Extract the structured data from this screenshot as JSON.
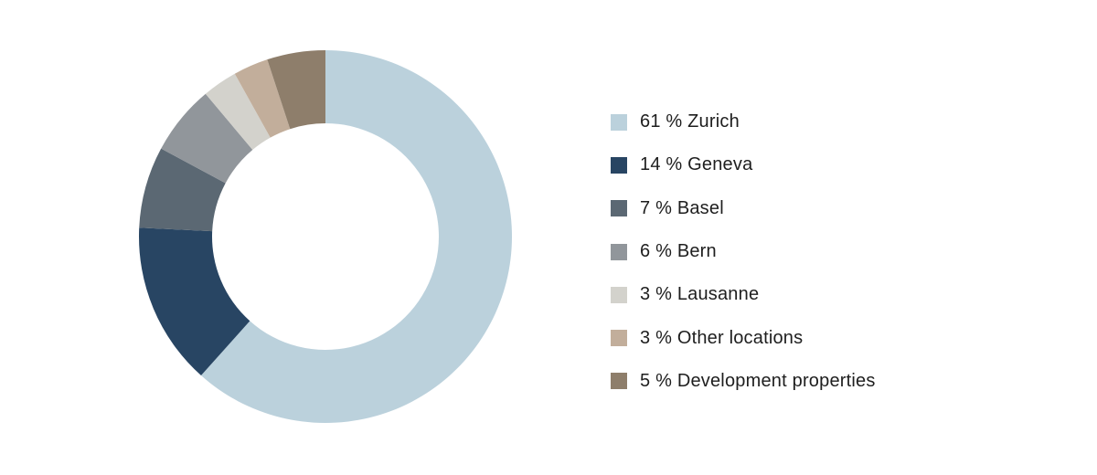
{
  "chart_data": {
    "type": "pie",
    "donut": true,
    "start_angle_deg": 0,
    "direction": "clockwise",
    "legend_position": "right",
    "slices": [
      {
        "name": "Zurich",
        "value": 61,
        "label": "61 % Zurich",
        "color": "#bbd1dc"
      },
      {
        "name": "Geneva",
        "value": 14,
        "label": "14 % Geneva",
        "color": "#284563"
      },
      {
        "name": "Basel",
        "value": 7,
        "label": "7 % Basel",
        "color": "#5b6873"
      },
      {
        "name": "Bern",
        "value": 6,
        "label": "6 % Bern",
        "color": "#91969b"
      },
      {
        "name": "Lausanne",
        "value": 3,
        "label": "3 % Lausanne",
        "color": "#d3d2cc"
      },
      {
        "name": "Other locations",
        "value": 3,
        "label": "3 % Other locations",
        "color": "#c2ae9b"
      },
      {
        "name": "Development properties",
        "value": 5,
        "label": "5 % Development properties",
        "color": "#8e7e6b"
      }
    ]
  },
  "legend": {
    "items": [
      {
        "label": "61 % Zurich",
        "color": "#bbd1dc"
      },
      {
        "label": "14 % Geneva",
        "color": "#284563"
      },
      {
        "label": "7 % Basel",
        "color": "#5b6873"
      },
      {
        "label": "6 % Bern",
        "color": "#91969b"
      },
      {
        "label": "3 % Lausanne",
        "color": "#d3d2cc"
      },
      {
        "label": "3 % Other locations",
        "color": "#c2ae9b"
      },
      {
        "label": "5 % Development properties",
        "color": "#8e7e6b"
      }
    ]
  }
}
